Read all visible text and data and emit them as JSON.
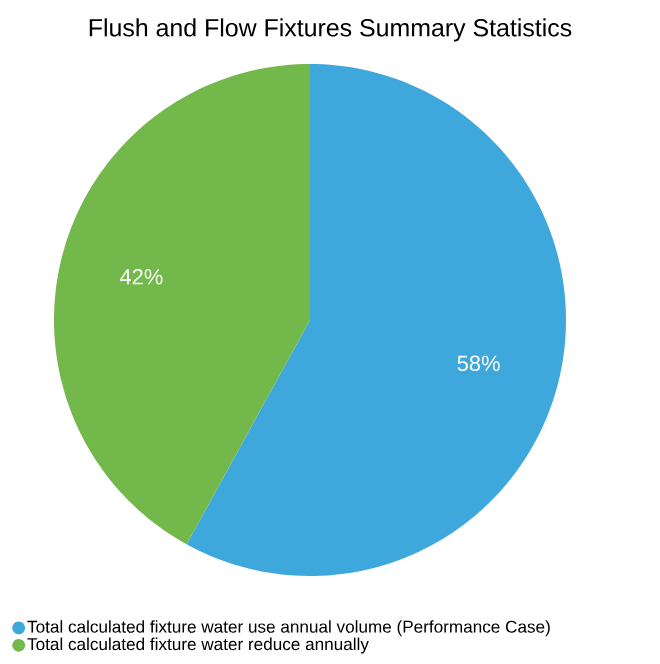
{
  "chart_data": {
    "type": "pie",
    "title": "Flush and Flow Fixtures Summary Statistics",
    "categories": [
      "Total calculated fixture water use annual volume (Performance Case)",
      "Total calculated fixture water reduce annually"
    ],
    "values": [
      58,
      42
    ],
    "colors": [
      "#3ea7dc",
      "#72b84b"
    ],
    "value_labels": [
      "58%",
      "42%"
    ],
    "legend": "bottom"
  }
}
